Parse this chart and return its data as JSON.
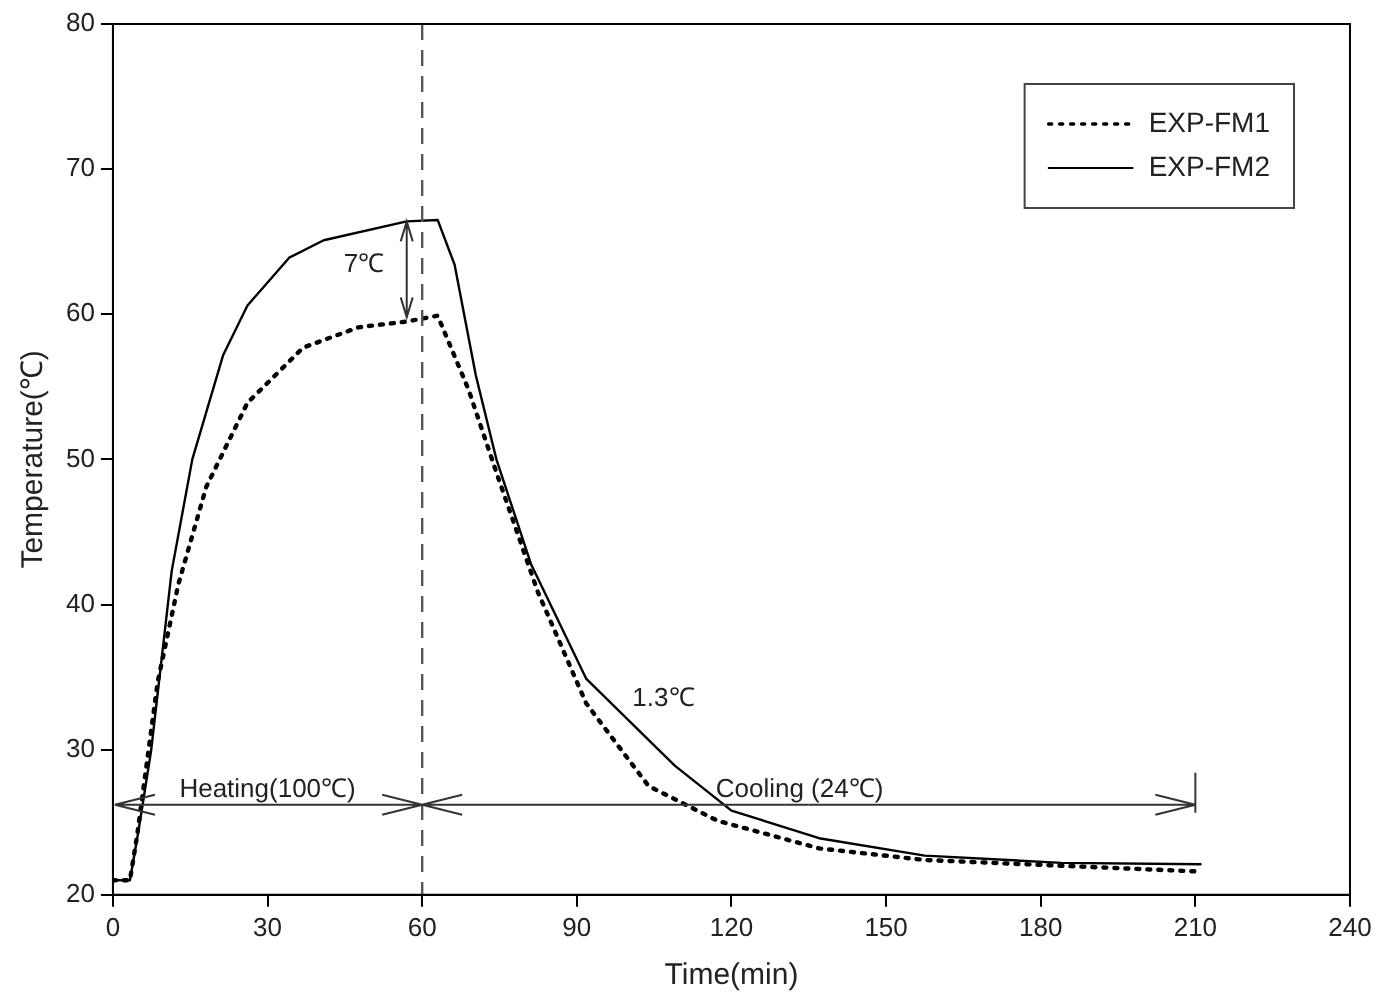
{
  "chart_data": {
    "type": "line",
    "xlabel": "Time(min)",
    "ylabel": "Temperature(℃)",
    "xlim": [
      0,
      240
    ],
    "xticks": [
      0,
      30,
      60,
      90,
      120,
      150,
      180,
      210,
      240
    ],
    "ylim": [
      20,
      80
    ],
    "yticks": [
      20,
      30,
      40,
      50,
      60,
      70,
      80
    ],
    "grid": false,
    "legend": "top right",
    "marker": "none",
    "series": [
      {
        "name": "EXP-FM1",
        "color": "#000000",
        "line_style": "dotted",
        "x": [
          0,
          2,
          3.3,
          4.7,
          8.7,
          12.7,
          18.1,
          26.1,
          36.9,
          47.6,
          57,
          63,
          69,
          74.4,
          82.4,
          91.8,
          103.9,
          117.3,
          137,
          157.5,
          184,
          211
        ],
        "values": [
          21,
          21,
          21,
          24.1,
          34.7,
          41.4,
          48.1,
          53.9,
          57.7,
          59.1,
          59.5,
          59.9,
          54.8,
          49.1,
          40.9,
          33.2,
          27.5,
          25.1,
          23.2,
          22.4,
          22,
          21.6
        ]
      },
      {
        "name": "EXP-FM2",
        "color": "#000000",
        "line_style": "solid",
        "x": [
          0,
          2,
          3.3,
          5,
          7.4,
          11.4,
          15.4,
          21.4,
          26.1,
          34.2,
          40.9,
          57,
          63,
          66.3,
          70.4,
          74.4,
          81.1,
          91.8,
          109,
          120,
          137,
          157.5,
          184,
          211
        ],
        "values": [
          21,
          21,
          21,
          24.5,
          29.9,
          42.3,
          50,
          57.2,
          60.6,
          63.9,
          65.1,
          66.4,
          66.5,
          63.4,
          55.8,
          50,
          42.8,
          34.9,
          28.9,
          25.8,
          23.9,
          22.7,
          22.2,
          22.1
        ]
      }
    ],
    "ref_lines": [
      {
        "axis": "x",
        "value": 60,
        "line_style": "dashed",
        "color": "#555555"
      }
    ],
    "annotations": [
      {
        "text": "7℃",
        "x": 57,
        "y": 66.4
      },
      "1.3℃",
      "Heating(100℃)",
      {
        "text": "Cooling (24℃)",
        "x": 60,
        "y": 26.2
      }
    ]
  }
}
